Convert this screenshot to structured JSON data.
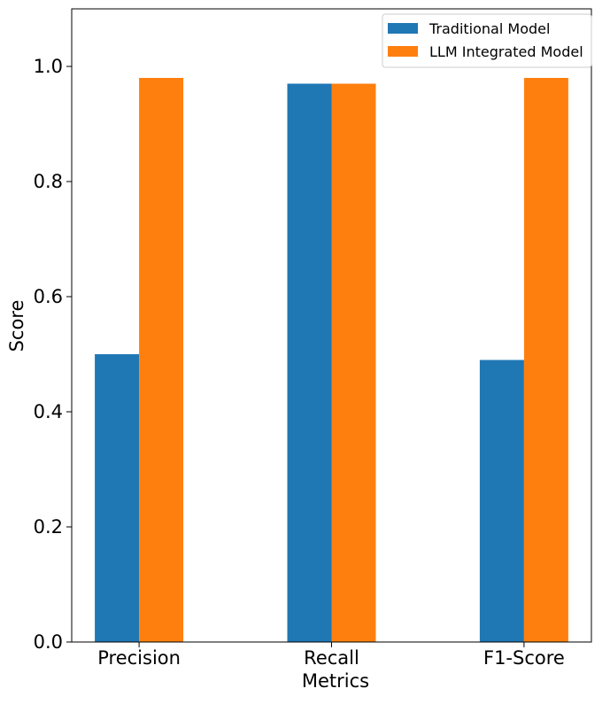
{
  "chart_data": {
    "type": "bar",
    "title": "",
    "xlabel": "Metrics",
    "ylabel": "Score",
    "categories": [
      "Precision",
      "Recall",
      "F1-Score"
    ],
    "series": [
      {
        "name": "Traditional Model",
        "color": "#1f77b4",
        "values": [
          0.5,
          0.97,
          0.49
        ]
      },
      {
        "name": "LLM Integrated Model",
        "color": "#ff7f0e",
        "values": [
          0.98,
          0.97,
          0.98
        ]
      }
    ],
    "ylim": [
      0,
      1.1
    ],
    "yticks": [
      "0.0",
      "0.2",
      "0.4",
      "0.6",
      "0.8",
      "1.0"
    ],
    "grid": false,
    "legend_position": "top-right"
  }
}
